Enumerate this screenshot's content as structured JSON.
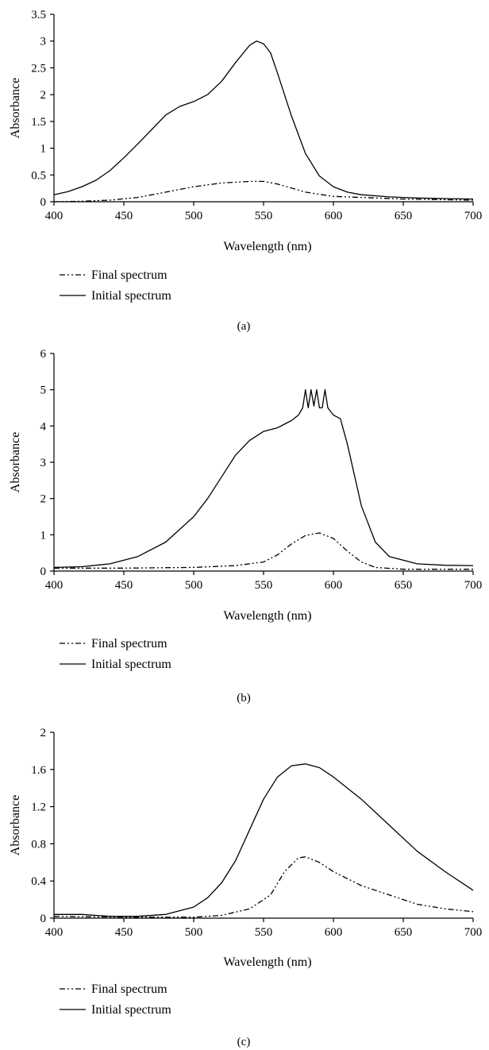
{
  "chart_data": [
    {
      "type": "line",
      "xlabel": "Wavelength (nm)",
      "ylabel": "Absorbance",
      "xlim": [
        400,
        700
      ],
      "ylim": [
        0,
        3.5
      ],
      "xticks": [
        "400",
        "450",
        "500",
        "550",
        "600",
        "650",
        "700"
      ],
      "yticks": [
        "0",
        "0.5",
        "1",
        "1.5",
        "2",
        "2.5",
        "3",
        "3.5"
      ],
      "grid": false,
      "legend_position": "below",
      "caption": "(a)",
      "series": [
        {
          "name": "Final spectrum",
          "style": "dash-dot-dot",
          "x": [
            400,
            420,
            440,
            460,
            480,
            500,
            520,
            540,
            550,
            560,
            580,
            600,
            650,
            700
          ],
          "y": [
            0.0,
            0.01,
            0.03,
            0.08,
            0.18,
            0.28,
            0.35,
            0.38,
            0.38,
            0.33,
            0.18,
            0.1,
            0.05,
            0.03
          ]
        },
        {
          "name": "Initial spectrum",
          "style": "solid",
          "x": [
            400,
            410,
            420,
            430,
            440,
            450,
            460,
            470,
            480,
            490,
            500,
            510,
            520,
            530,
            540,
            545,
            550,
            555,
            560,
            570,
            580,
            590,
            600,
            610,
            620,
            640,
            660,
            680,
            700
          ],
          "y": [
            0.13,
            0.19,
            0.28,
            0.4,
            0.58,
            0.82,
            1.08,
            1.35,
            1.62,
            1.78,
            1.87,
            2.0,
            2.25,
            2.6,
            2.92,
            3.0,
            2.95,
            2.78,
            2.4,
            1.6,
            0.9,
            0.48,
            0.28,
            0.18,
            0.13,
            0.09,
            0.07,
            0.06,
            0.05
          ]
        }
      ]
    },
    {
      "type": "line",
      "xlabel": "Wavelength (nm)",
      "ylabel": "Absorbance",
      "xlim": [
        400,
        700
      ],
      "ylim": [
        0,
        6
      ],
      "xticks": [
        "400",
        "450",
        "500",
        "550",
        "600",
        "650",
        "700"
      ],
      "yticks": [
        "0",
        "1",
        "2",
        "3",
        "4",
        "5",
        "6"
      ],
      "grid": false,
      "legend_position": "below",
      "caption": "(b)",
      "series": [
        {
          "name": "Final spectrum",
          "style": "dash-dot-dot",
          "x": [
            400,
            450,
            500,
            530,
            550,
            560,
            570,
            580,
            590,
            600,
            610,
            620,
            630,
            650,
            700
          ],
          "y": [
            0.08,
            0.08,
            0.1,
            0.15,
            0.25,
            0.45,
            0.75,
            0.98,
            1.05,
            0.9,
            0.55,
            0.25,
            0.1,
            0.05,
            0.05
          ]
        },
        {
          "name": "Initial spectrum",
          "style": "solid",
          "x": [
            400,
            420,
            440,
            460,
            480,
            500,
            510,
            520,
            530,
            540,
            550,
            555,
            560,
            565,
            570,
            575,
            578,
            580,
            582,
            584,
            586,
            588,
            590,
            592,
            594,
            596,
            600,
            605,
            610,
            620,
            630,
            640,
            660,
            680,
            700
          ],
          "y": [
            0.1,
            0.12,
            0.2,
            0.4,
            0.8,
            1.5,
            2.0,
            2.6,
            3.2,
            3.6,
            3.85,
            3.9,
            3.95,
            4.05,
            4.15,
            4.3,
            4.5,
            5.0,
            4.5,
            5.0,
            4.55,
            5.0,
            4.5,
            4.5,
            5.0,
            4.5,
            4.3,
            4.2,
            3.5,
            1.8,
            0.8,
            0.4,
            0.2,
            0.16,
            0.15
          ]
        }
      ]
    },
    {
      "type": "line",
      "xlabel": "Wavelength (nm)",
      "ylabel": "Absorbance",
      "xlim": [
        400,
        700
      ],
      "ylim": [
        0,
        2
      ],
      "xticks": [
        "400",
        "450",
        "500",
        "550",
        "600",
        "650",
        "700"
      ],
      "yticks": [
        "0",
        "0.4",
        "0.8",
        "1.2",
        "1.6",
        "2"
      ],
      "grid": false,
      "legend_position": "below",
      "caption": "(c)",
      "series": [
        {
          "name": "Final spectrum",
          "style": "dash-dot-dot",
          "x": [
            400,
            450,
            500,
            520,
            540,
            555,
            565,
            575,
            580,
            590,
            600,
            620,
            640,
            660,
            680,
            700
          ],
          "y": [
            0.02,
            0.01,
            0.01,
            0.03,
            0.1,
            0.25,
            0.5,
            0.65,
            0.66,
            0.6,
            0.5,
            0.35,
            0.25,
            0.15,
            0.1,
            0.07
          ]
        },
        {
          "name": "Initial spectrum",
          "style": "solid",
          "x": [
            400,
            420,
            440,
            460,
            480,
            500,
            510,
            520,
            530,
            540,
            550,
            560,
            570,
            580,
            590,
            600,
            620,
            640,
            660,
            680,
            700
          ],
          "y": [
            0.04,
            0.04,
            0.02,
            0.02,
            0.04,
            0.12,
            0.22,
            0.38,
            0.62,
            0.95,
            1.28,
            1.52,
            1.64,
            1.66,
            1.62,
            1.52,
            1.28,
            1.0,
            0.72,
            0.5,
            0.3
          ]
        }
      ]
    }
  ]
}
